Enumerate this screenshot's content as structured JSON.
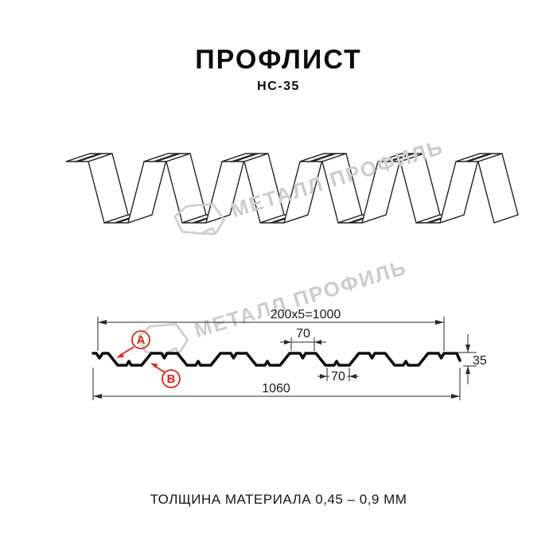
{
  "header": {
    "title": "ПРОФЛИСТ",
    "subtitle": "НС-35"
  },
  "watermark": {
    "brand": "МЕТАЛЛ ПРОФИЛЬ"
  },
  "diagram": {
    "dimensions": {
      "module_width": "200x5=1000",
      "top_flange_width": "70",
      "bottom_flange_width": "70",
      "profile_height": "35",
      "total_width": "1060"
    },
    "markers": {
      "a": "A",
      "b": "B"
    }
  },
  "footer": {
    "thickness_note": "ТОЛЩИНА МАТЕРИАЛА 0,45 – 0,9 ММ"
  },
  "colors": {
    "accent_red": "#e2231a",
    "watermark_gray": "#cdcdcd",
    "line_black": "#111111"
  }
}
